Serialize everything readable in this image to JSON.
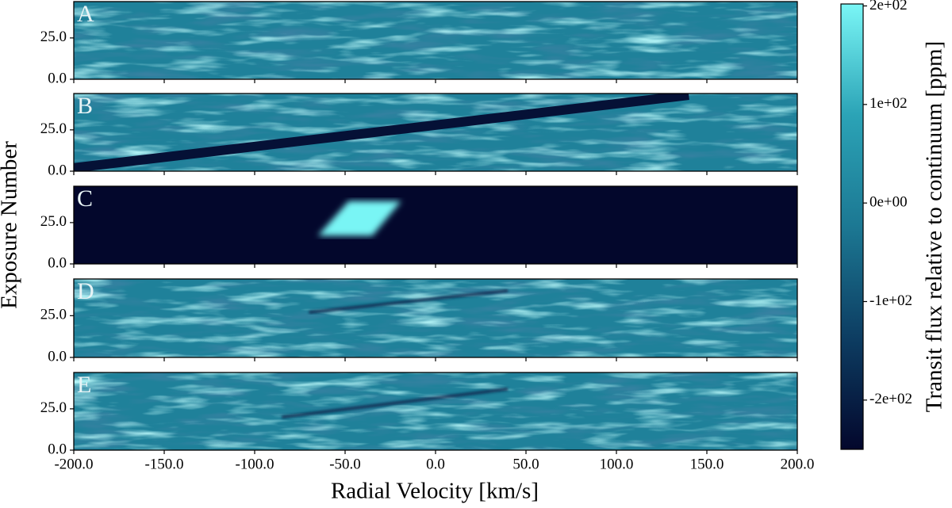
{
  "chart_data": {
    "type": "heatmap",
    "xlabel": "Radial Velocity [km/s]",
    "ylabel": "Exposure Number",
    "xlim": [
      -200,
      200
    ],
    "xticks": [
      {
        "value": -200,
        "label": "-200.0"
      },
      {
        "value": -150,
        "label": "-150.0"
      },
      {
        "value": -100,
        "label": "-100.0"
      },
      {
        "value": -50,
        "label": "-50.0"
      },
      {
        "value": 0,
        "label": "0.0"
      },
      {
        "value": 50,
        "label": "50.0"
      },
      {
        "value": 100,
        "label": "100.0"
      },
      {
        "value": 150,
        "label": "150.0"
      },
      {
        "value": 200,
        "label": "200.0"
      }
    ],
    "ylim": [
      0,
      47
    ],
    "yticks": [
      {
        "value": 0,
        "label": "0.0"
      },
      {
        "value": 25,
        "label": "25.0"
      }
    ],
    "colorbar": {
      "label": "Transit flux relative to continuum [ppm]",
      "clim": [
        -250,
        202
      ],
      "ticks": [
        {
          "value": 200,
          "label": "2e+02"
        },
        {
          "value": 100,
          "label": "1e+02"
        },
        {
          "value": 0,
          "label": "0e+00"
        },
        {
          "value": -100,
          "label": "-1e+02"
        },
        {
          "value": -200,
          "label": "-2e+02"
        }
      ],
      "colormap": [
        "#03072c",
        "#0d3d62",
        "#1c7893",
        "#2ba3b6",
        "#7af6f6"
      ]
    },
    "panels": [
      {
        "label": "A",
        "background": 0
      },
      {
        "label": "B",
        "background": 0,
        "mask": {
          "x": [
            -200,
            140
          ],
          "y": [
            2,
            46
          ],
          "value": -230
        }
      },
      {
        "label": "C",
        "background": -250,
        "blob": {
          "x": [
            -65,
            -35,
            -19,
            -48
          ],
          "y": [
            17,
            17,
            38,
            38
          ],
          "value": 200
        }
      },
      {
        "label": "D",
        "background": 0,
        "trail": {
          "x": [
            -70,
            40
          ],
          "y": [
            27,
            40
          ],
          "value": -180
        }
      },
      {
        "label": "E",
        "background": 0,
        "trail": {
          "x": [
            -85,
            40
          ],
          "y": [
            20,
            37
          ],
          "value": -180
        }
      }
    ]
  }
}
